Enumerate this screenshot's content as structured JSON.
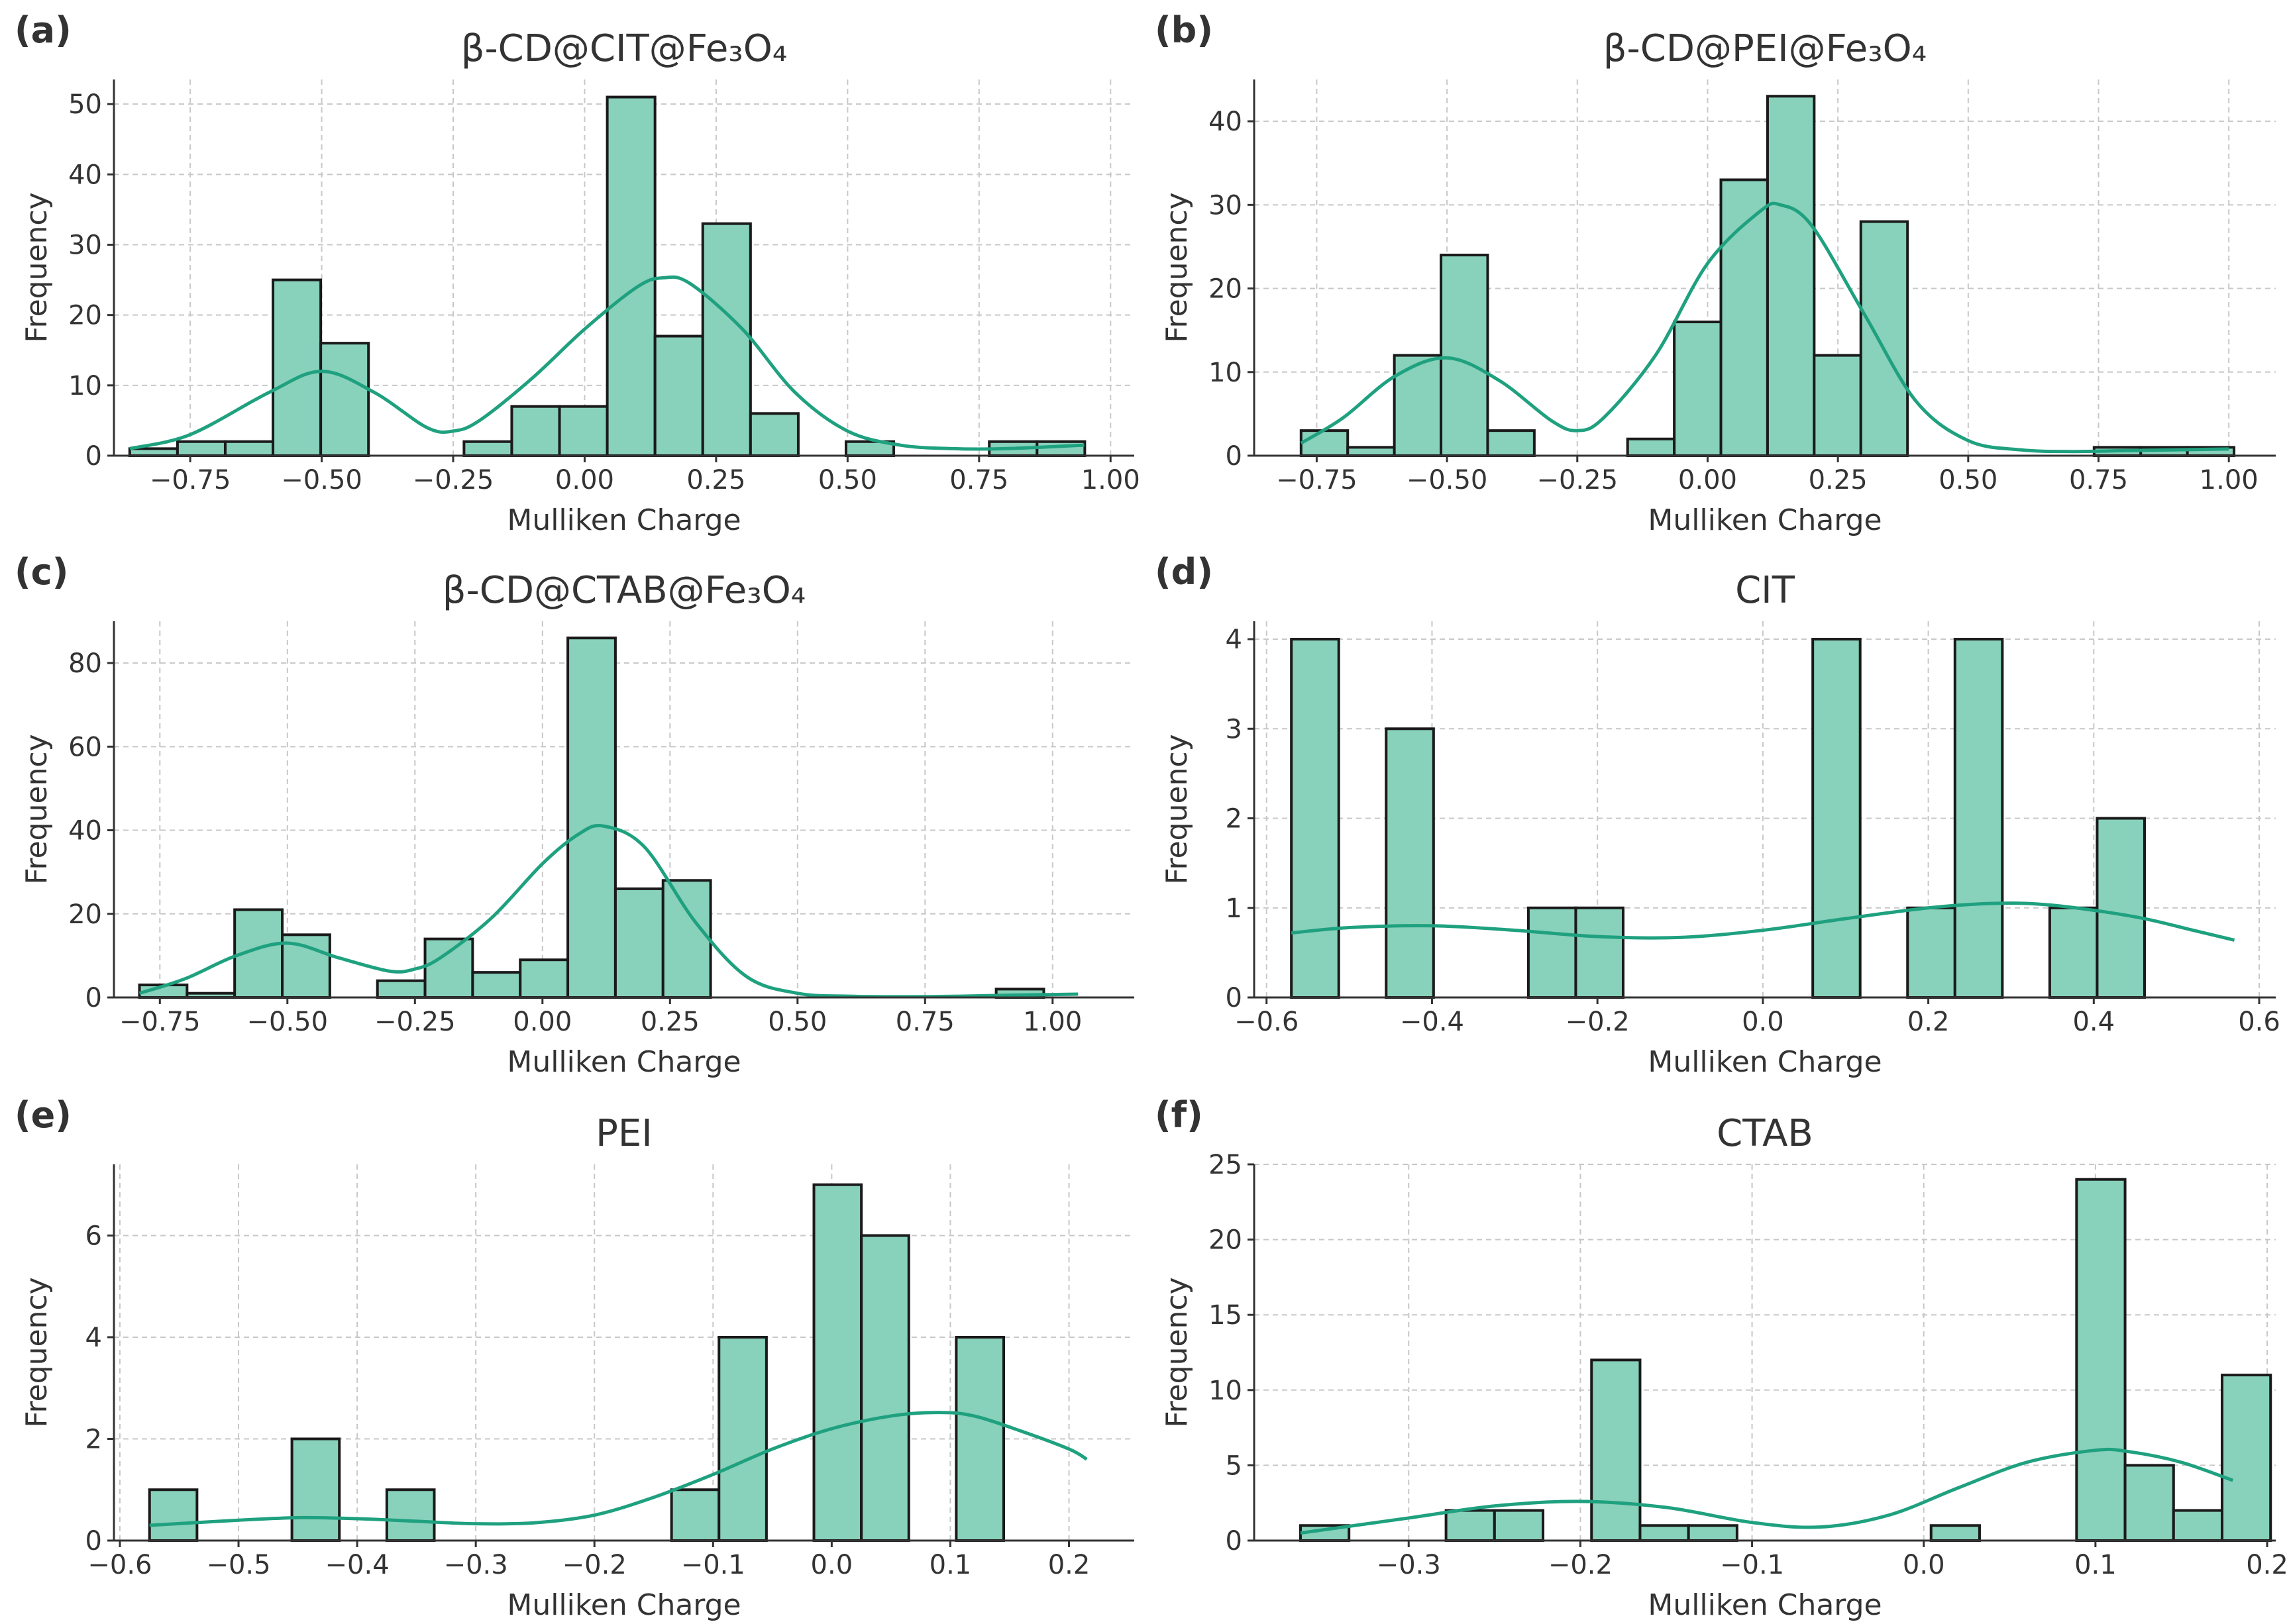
{
  "colors": {
    "bar_fill": "#88d1bb",
    "bar_edge": "#1a1a1a",
    "kde_line": "#1fa17f",
    "grid": "#c8c8c8",
    "text": "#333333"
  },
  "chart_data": [
    {
      "panel": "(a)",
      "title": "β-CD@CIT@Fe₃O₄",
      "type": "bar",
      "xlabel": "Mulliken Charge",
      "ylabel": "Frequency",
      "xlim": [
        -0.895,
        1.045
      ],
      "ylim": [
        0,
        53.5
      ],
      "xticks": [
        -0.75,
        -0.5,
        -0.25,
        0.0,
        0.25,
        0.5,
        0.75,
        1.0
      ],
      "xtick_labels": [
        "−0.75",
        "−0.50",
        "−0.25",
        "0.00",
        "0.25",
        "0.50",
        "0.75",
        "1.00"
      ],
      "yticks": [
        0,
        10,
        20,
        30,
        40,
        50
      ],
      "ytick_labels": [
        "0",
        "10",
        "20",
        "30",
        "40",
        "50"
      ],
      "bin_start": -0.865,
      "bin_width": 0.0908,
      "values": [
        1,
        2,
        2,
        25,
        16,
        0,
        0,
        2,
        7,
        7,
        51,
        17,
        33,
        6,
        0,
        2,
        0,
        0,
        2,
        2
      ],
      "kde": {
        "x": [
          -0.865,
          -0.75,
          -0.6,
          -0.5,
          -0.4,
          -0.3,
          -0.25,
          -0.2,
          -0.1,
          0.0,
          0.1,
          0.15,
          0.2,
          0.3,
          0.4,
          0.5,
          0.6,
          0.7,
          0.8,
          0.95
        ],
        "y": [
          1,
          3,
          9,
          12,
          9,
          4,
          3.5,
          5,
          11,
          18,
          24,
          25.3,
          24.5,
          18,
          9,
          3.5,
          1.5,
          1,
          1,
          1.5
        ]
      }
    },
    {
      "panel": "(b)",
      "title": "β-CD@PEI@Fe₃O₄",
      "type": "bar",
      "xlabel": "Mulliken Charge",
      "ylabel": "Frequency",
      "xlim": [
        -0.87,
        1.09
      ],
      "ylim": [
        0,
        45
      ],
      "xticks": [
        -0.75,
        -0.5,
        -0.25,
        0.0,
        0.25,
        0.5,
        0.75,
        1.0
      ],
      "xtick_labels": [
        "−0.75",
        "−0.50",
        "−0.25",
        "0.00",
        "0.25",
        "0.50",
        "0.75",
        "1.00"
      ],
      "yticks": [
        0,
        10,
        20,
        30,
        40
      ],
      "ytick_labels": [
        "0",
        "10",
        "20",
        "30",
        "40"
      ],
      "bin_start": -0.78,
      "bin_width": 0.0895,
      "values": [
        3,
        1,
        12,
        24,
        3,
        0,
        0,
        2,
        16,
        33,
        43,
        12,
        28,
        0,
        0,
        0,
        0,
        1,
        1,
        1
      ],
      "kde": {
        "x": [
          -0.78,
          -0.7,
          -0.6,
          -0.5,
          -0.4,
          -0.3,
          -0.25,
          -0.2,
          -0.1,
          0.0,
          0.1,
          0.14,
          0.2,
          0.3,
          0.4,
          0.5,
          0.6,
          0.7,
          0.8,
          1.0
        ],
        "y": [
          1.5,
          4.5,
          9.5,
          11.7,
          9,
          4.2,
          3,
          4.5,
          12,
          23,
          29.2,
          30,
          27.5,
          17,
          6.5,
          1.8,
          0.7,
          0.5,
          0.6,
          0.8
        ]
      }
    },
    {
      "panel": "(c)",
      "title": "β-CD@CTAB@Fe₃O₄",
      "type": "bar",
      "xlabel": "Mulliken Charge",
      "ylabel": "Frequency",
      "xlim": [
        -0.84,
        1.16
      ],
      "ylim": [
        0,
        90
      ],
      "xticks": [
        -0.75,
        -0.5,
        -0.25,
        0.0,
        0.25,
        0.5,
        0.75,
        1.0
      ],
      "xtick_labels": [
        "−0.75",
        "−0.50",
        "−0.25",
        "0.00",
        "0.25",
        "0.50",
        "0.75",
        "1.00"
      ],
      "yticks": [
        0,
        20,
        40,
        60,
        80
      ],
      "ytick_labels": [
        "0",
        "20",
        "40",
        "60",
        "80"
      ],
      "bin_start": -0.79,
      "bin_width": 0.0933,
      "values": [
        3,
        1,
        21,
        15,
        0,
        4,
        14,
        6,
        9,
        86,
        26,
        28,
        0,
        0,
        0,
        0,
        0,
        0,
        2,
        0
      ],
      "kde": {
        "x": [
          -0.79,
          -0.7,
          -0.6,
          -0.5,
          -0.4,
          -0.3,
          -0.25,
          -0.2,
          -0.1,
          0.0,
          0.07,
          0.12,
          0.2,
          0.3,
          0.4,
          0.5,
          0.6,
          0.75,
          0.9,
          1.05
        ],
        "y": [
          1,
          4.5,
          10,
          13,
          9.5,
          6.3,
          6.8,
          9.5,
          19,
          32,
          39,
          41,
          36,
          18,
          5,
          1,
          0.3,
          0.2,
          0.5,
          0.8
        ]
      }
    },
    {
      "panel": "(d)",
      "title": "CIT",
      "type": "bar",
      "xlabel": "Mulliken Charge",
      "ylabel": "Frequency",
      "xlim": [
        -0.615,
        0.62
      ],
      "ylim": [
        0,
        4.2
      ],
      "xticks": [
        -0.6,
        -0.4,
        -0.2,
        0.0,
        0.2,
        0.4,
        0.6
      ],
      "xtick_labels": [
        "−0.6",
        "−0.4",
        "−0.2",
        "0.0",
        "0.2",
        "0.4",
        "0.6"
      ],
      "yticks": [
        0,
        1,
        2,
        3,
        4
      ],
      "ytick_labels": [
        "0",
        "1",
        "2",
        "3",
        "4"
      ],
      "bin_start": -0.57,
      "bin_width": 0.0573,
      "values": [
        4,
        0,
        3,
        0,
        0,
        1,
        1,
        0,
        0,
        0,
        0,
        4,
        0,
        1,
        4,
        0,
        1,
        2
      ],
      "kde": {
        "x": [
          -0.57,
          -0.5,
          -0.4,
          -0.3,
          -0.2,
          -0.1,
          0.0,
          0.1,
          0.2,
          0.28,
          0.35,
          0.45,
          0.52,
          0.57
        ],
        "y": [
          0.72,
          0.78,
          0.8,
          0.75,
          0.68,
          0.67,
          0.75,
          0.88,
          1.0,
          1.05,
          1.03,
          0.9,
          0.75,
          0.64
        ]
      }
    },
    {
      "panel": "(e)",
      "title": "PEI",
      "type": "bar",
      "xlabel": "Mulliken Charge",
      "ylabel": "Frequency",
      "xlim": [
        -0.605,
        0.255
      ],
      "ylim": [
        0,
        7.4
      ],
      "xticks": [
        -0.6,
        -0.5,
        -0.4,
        -0.3,
        -0.2,
        -0.1,
        0.0,
        0.1,
        0.2
      ],
      "xtick_labels": [
        "−0.6",
        "−0.5",
        "−0.4",
        "−0.3",
        "−0.2",
        "−0.1",
        "0.0",
        "0.1",
        "0.2"
      ],
      "yticks": [
        0,
        2,
        4,
        6
      ],
      "ytick_labels": [
        "0",
        "2",
        "4",
        "6"
      ],
      "bin_start": -0.575,
      "bin_width": 0.04,
      "values": [
        1,
        0,
        0,
        2,
        0,
        1,
        0,
        0,
        0,
        0,
        0,
        1,
        4,
        0,
        7,
        6,
        0,
        4
      ],
      "kde": {
        "x": [
          -0.575,
          -0.5,
          -0.45,
          -0.4,
          -0.35,
          -0.3,
          -0.25,
          -0.2,
          -0.15,
          -0.1,
          -0.05,
          0.0,
          0.05,
          0.09,
          0.12,
          0.16,
          0.2,
          0.215
        ],
        "y": [
          0.3,
          0.4,
          0.45,
          0.43,
          0.38,
          0.33,
          0.35,
          0.5,
          0.85,
          1.3,
          1.8,
          2.2,
          2.45,
          2.52,
          2.45,
          2.15,
          1.8,
          1.6
        ]
      }
    },
    {
      "panel": "(f)",
      "title": "CTAB",
      "type": "bar",
      "xlabel": "Mulliken Charge",
      "ylabel": "Frequency",
      "xlim": [
        -0.39,
        0.205
      ],
      "ylim": [
        0,
        25
      ],
      "xticks": [
        -0.3,
        -0.2,
        -0.1,
        0.0,
        0.1,
        0.2
      ],
      "xtick_labels": [
        "−0.3",
        "−0.2",
        "−0.1",
        "0.0",
        "0.1",
        "0.2"
      ],
      "yticks": [
        0,
        5,
        10,
        15,
        20,
        25
      ],
      "ytick_labels": [
        "0",
        "5",
        "10",
        "15",
        "20",
        "25"
      ],
      "bin_start": -0.363,
      "bin_width": 0.02825,
      "values": [
        1,
        0,
        0,
        2,
        2,
        0,
        12,
        1,
        1,
        0,
        0,
        0,
        0,
        1,
        0,
        0,
        24,
        5,
        2,
        11
      ],
      "kde": {
        "x": [
          -0.363,
          -0.3,
          -0.25,
          -0.2,
          -0.15,
          -0.1,
          -0.06,
          -0.02,
          0.02,
          0.06,
          0.1,
          0.12,
          0.15,
          0.18
        ],
        "y": [
          0.5,
          1.5,
          2.3,
          2.6,
          2.2,
          1.2,
          0.9,
          1.7,
          3.5,
          5.2,
          6,
          5.9,
          5.2,
          4
        ]
      }
    }
  ]
}
